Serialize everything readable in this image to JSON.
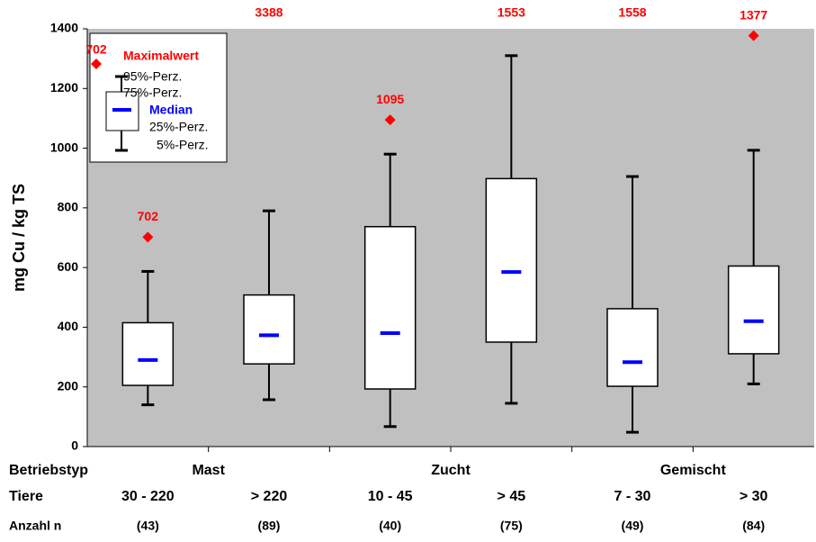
{
  "chart_data": {
    "type": "box",
    "y_label": "mg Cu / kg TS",
    "categories": [
      "30 - 220",
      "> 220",
      "10 - 45",
      "> 45",
      "7 - 30",
      "> 30"
    ],
    "stats": {
      "p5": [
        140,
        157,
        67,
        145,
        48,
        210
      ],
      "p25": [
        205,
        277,
        193,
        350,
        202,
        311
      ],
      "median": [
        290,
        373,
        380,
        585,
        283,
        420
      ],
      "p75": [
        415,
        508,
        737,
        898,
        462,
        605
      ],
      "p95": [
        587,
        790,
        980,
        1310,
        905,
        993
      ],
      "max": [
        702,
        3388,
        1095,
        1553,
        1558,
        1377
      ]
    },
    "box_color": "#ffffff",
    "median_color": "#0000ff",
    "max_color": "#ff0000",
    "ylim": [
      0,
      1400
    ],
    "yticks": [
      0,
      200,
      400,
      600,
      800,
      1000,
      1200,
      1400
    ],
    "background": "#c0c0c0",
    "row_labels": [
      "Betriebstyp",
      "Tiere",
      "Anzahl n"
    ],
    "group_labels": [
      "Mast",
      "Zucht",
      "Gemischt"
    ],
    "counts": [
      "(43)",
      "(89)",
      "(40)",
      "(75)",
      "(49)",
      "(84)"
    ],
    "legend": {
      "sample": "702",
      "max": "Maximalwert",
      "p95": "95%-Perz.",
      "p75": "75%-Perz.",
      "median": "Median",
      "p25": "25%-Perz.",
      "p5": "5%-Perz."
    }
  }
}
